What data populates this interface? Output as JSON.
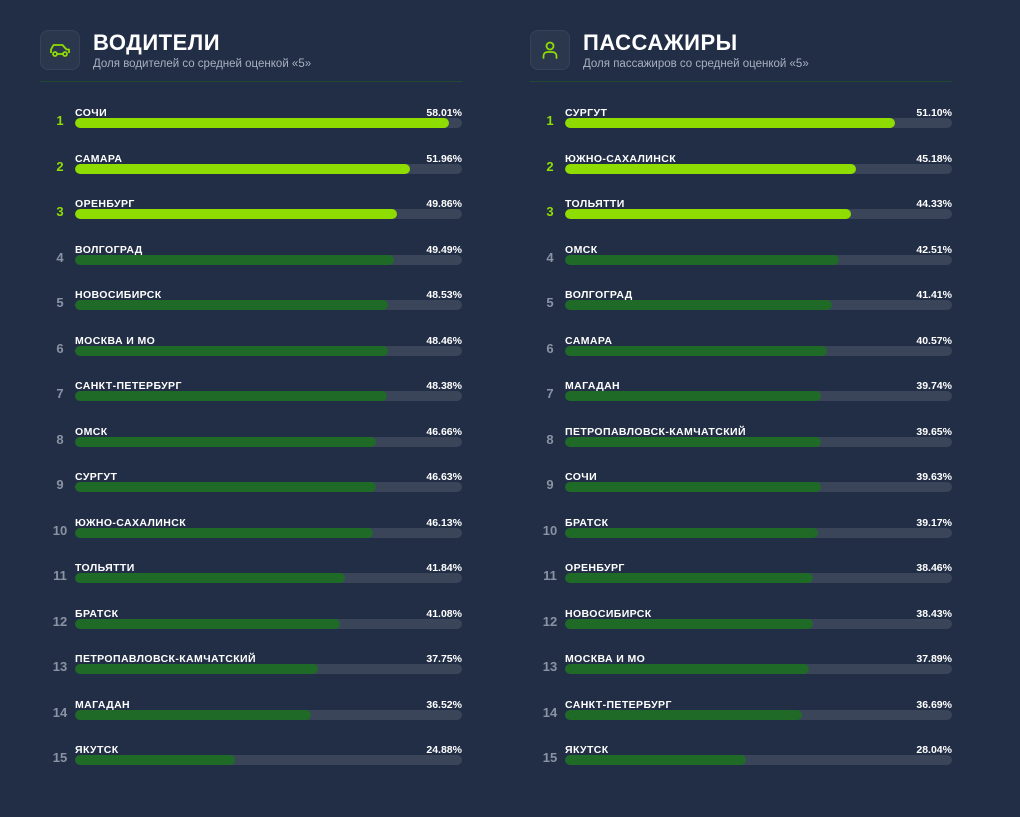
{
  "scale_max_percent": 60,
  "colors": {
    "background": "#212e46",
    "top3": "#8fdc00",
    "rest": "#1e6a26",
    "track": "#3a4559"
  },
  "drivers": {
    "icon": "car-icon",
    "title": "ВОДИТЕЛИ",
    "subtitle": "Доля водителей со средней оценкой «5»",
    "rows": [
      {
        "rank": "1",
        "city": "СОЧИ",
        "value": "58.01%",
        "pct": 58.01
      },
      {
        "rank": "2",
        "city": "САМАРА",
        "value": "51.96%",
        "pct": 51.96
      },
      {
        "rank": "3",
        "city": "ОРЕНБУРГ",
        "value": "49.86%",
        "pct": 49.86
      },
      {
        "rank": "4",
        "city": "ВОЛГОГРАД",
        "value": "49.49%",
        "pct": 49.49
      },
      {
        "rank": "5",
        "city": "НОВОСИБИРСК",
        "value": "48.53%",
        "pct": 48.53
      },
      {
        "rank": "6",
        "city": "МОСКВА И МО",
        "value": "48.46%",
        "pct": 48.46
      },
      {
        "rank": "7",
        "city": "САНКТ-ПЕТЕРБУРГ",
        "value": "48.38%",
        "pct": 48.38
      },
      {
        "rank": "8",
        "city": "ОМСК",
        "value": "46.66%",
        "pct": 46.66
      },
      {
        "rank": "9",
        "city": "СУРГУТ",
        "value": "46.63%",
        "pct": 46.63
      },
      {
        "rank": "10",
        "city": "ЮЖНО-САХАЛИНСК",
        "value": "46.13%",
        "pct": 46.13
      },
      {
        "rank": "11",
        "city": "ТОЛЬЯТТИ",
        "value": "41.84%",
        "pct": 41.84
      },
      {
        "rank": "12",
        "city": "БРАТСК",
        "value": "41.08%",
        "pct": 41.08
      },
      {
        "rank": "13",
        "city": "ПЕТРОПАВЛОВСК-КАМЧАТСКИЙ",
        "value": "37.75%",
        "pct": 37.75
      },
      {
        "rank": "14",
        "city": "МАГАДАН",
        "value": "36.52%",
        "pct": 36.52
      },
      {
        "rank": "15",
        "city": "ЯКУТСК",
        "value": "24.88%",
        "pct": 24.88
      }
    ]
  },
  "passengers": {
    "icon": "user-icon",
    "title": "ПАССАЖИРЫ",
    "subtitle": "Доля пассажиров со средней оценкой «5»",
    "rows": [
      {
        "rank": "1",
        "city": "СУРГУТ",
        "value": "51.10%",
        "pct": 51.1
      },
      {
        "rank": "2",
        "city": "ЮЖНО-САХАЛИНСК",
        "value": "45.18%",
        "pct": 45.18
      },
      {
        "rank": "3",
        "city": "ТОЛЬЯТТИ",
        "value": "44.33%",
        "pct": 44.33
      },
      {
        "rank": "4",
        "city": "ОМСК",
        "value": "42.51%",
        "pct": 42.51
      },
      {
        "rank": "5",
        "city": "ВОЛГОГРАД",
        "value": "41.41%",
        "pct": 41.41
      },
      {
        "rank": "6",
        "city": "САМАРА",
        "value": "40.57%",
        "pct": 40.57
      },
      {
        "rank": "7",
        "city": "МАГАДАН",
        "value": "39.74%",
        "pct": 39.74
      },
      {
        "rank": "8",
        "city": "ПЕТРОПАВЛОВСК-КАМЧАТСКИЙ",
        "value": "39.65%",
        "pct": 39.65
      },
      {
        "rank": "9",
        "city": "СОЧИ",
        "value": "39.63%",
        "pct": 39.63
      },
      {
        "rank": "10",
        "city": "БРАТСК",
        "value": "39.17%",
        "pct": 39.17
      },
      {
        "rank": "11",
        "city": "ОРЕНБУРГ",
        "value": "38.46%",
        "pct": 38.46
      },
      {
        "rank": "12",
        "city": "НОВОСИБИРСК",
        "value": "38.43%",
        "pct": 38.43
      },
      {
        "rank": "13",
        "city": "МОСКВА И МО",
        "value": "37.89%",
        "pct": 37.89
      },
      {
        "rank": "14",
        "city": "САНКТ-ПЕТЕРБУРГ",
        "value": "36.69%",
        "pct": 36.69
      },
      {
        "rank": "15",
        "city": "ЯКУТСК",
        "value": "28.04%",
        "pct": 28.04
      }
    ]
  }
}
